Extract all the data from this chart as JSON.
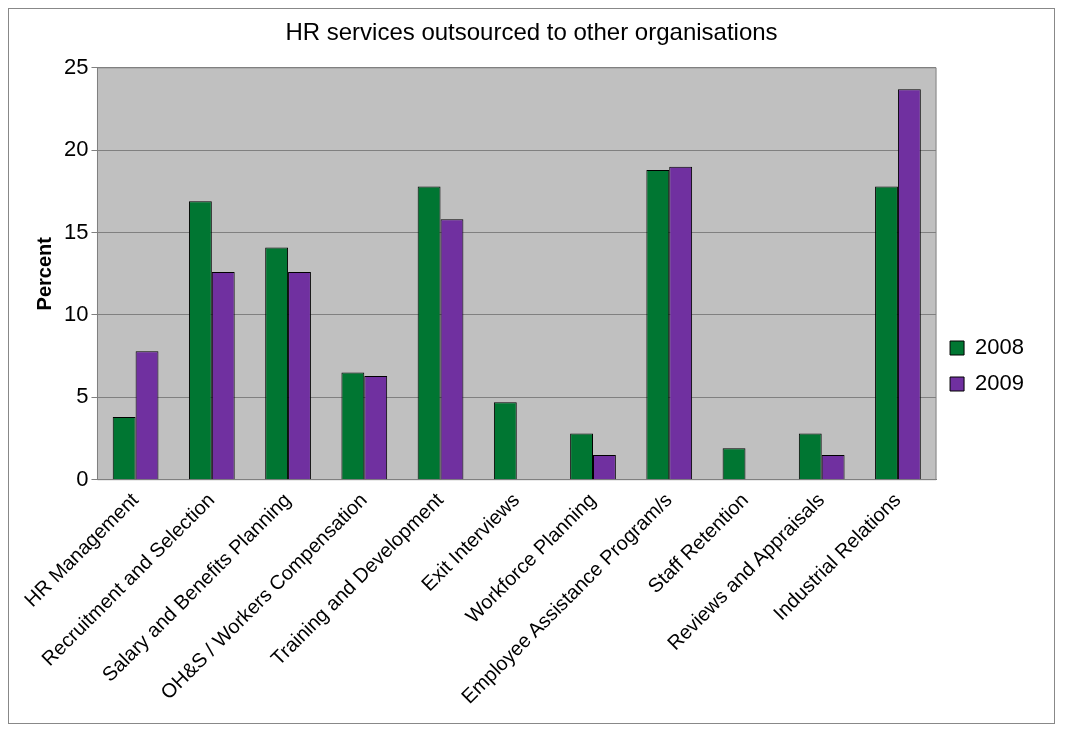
{
  "chart_data": {
    "type": "bar",
    "title": "HR services outsourced to other organisations",
    "ylabel": "Percent",
    "categories": [
      "HR Management",
      "Recruitment and Selection",
      "Salary and Benefits Planning",
      "OH&S / Workers Compensation",
      "Training and Development",
      "Exit Interviews",
      "Workforce Planning",
      "Employee Assistance Program/s",
      "Staff Retention",
      "Reviews and Appraisals",
      "Industrial Relations"
    ],
    "series": [
      {
        "name": "2008",
        "color": "#007632",
        "values": [
          3.8,
          16.9,
          14.1,
          6.5,
          17.8,
          4.7,
          2.8,
          18.8,
          1.9,
          2.8,
          17.8
        ]
      },
      {
        "name": "2009",
        "color": "#7030a0",
        "values": [
          7.8,
          12.6,
          12.6,
          6.3,
          15.8,
          null,
          1.5,
          19.0,
          null,
          1.5,
          23.7
        ]
      }
    ],
    "ylim": [
      0,
      25
    ],
    "yticks": [
      0,
      5,
      10,
      15,
      20,
      25
    ],
    "grid": "y",
    "legend": "right"
  }
}
